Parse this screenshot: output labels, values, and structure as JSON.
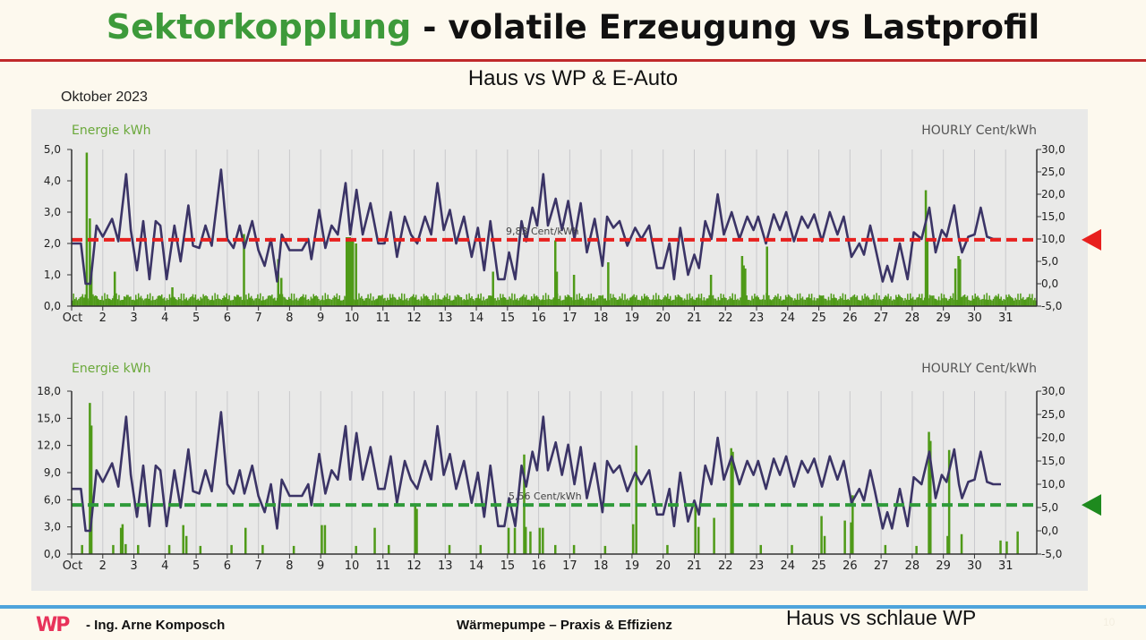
{
  "header": {
    "title_highlight": "Sektorkopplung",
    "title_rest": " - volatile Erzeugung vs Lastprofil",
    "subtitle": "Haus vs WP & E-Auto",
    "month": "Oktober 2023"
  },
  "footer": {
    "logo_text_a": "W",
    "logo_text_b": "P",
    "author": "- Ing. Arne Komposch",
    "center": "Wärmepumpe – Praxis & Effizienz",
    "right": "Haus vs schlaue WP",
    "page": "10"
  },
  "colors": {
    "title_green": "#3d9a3a",
    "price_line": "#3b3466",
    "energy_bars": "#4f9a18",
    "avg_red": "#e8201e",
    "avg_green": "#2f9a3a"
  },
  "chart_data": [
    {
      "type": "bar+line",
      "left_label": "Energie kWh",
      "right_label": "HOURLY Cent/kWh",
      "ylim": [
        0,
        5
      ],
      "yticks": [
        "0,0",
        "1,0",
        "2,0",
        "3,0",
        "4,0",
        "5,0"
      ],
      "y2lim": [
        -5,
        30
      ],
      "y2ticks": [
        "-5,0",
        "0,0",
        "5,0",
        "10,0",
        "15,0",
        "20,0",
        "25,0",
        "30,0"
      ],
      "xticks": [
        "Oct",
        "2",
        "3",
        "4",
        "5",
        "6",
        "7",
        "8",
        "9",
        "10",
        "11",
        "12",
        "13",
        "14",
        "15",
        "16",
        "17",
        "18",
        "19",
        "20",
        "21",
        "22",
        "23",
        "24",
        "25",
        "26",
        "27",
        "28",
        "29",
        "30",
        "31"
      ],
      "avg_price": 9.83,
      "avg_label": "9,83 Cent/kWh",
      "marker_color": "#e8201e",
      "baseline_kwh": 0.3,
      "energy_spikes": [
        [
          1.45,
          4.9
        ],
        [
          1.55,
          2.8
        ],
        [
          1.6,
          1.2
        ],
        [
          2.35,
          1.1
        ],
        [
          4.2,
          0.6
        ],
        [
          6.5,
          2.3
        ],
        [
          7.6,
          1.5
        ],
        [
          7.7,
          0.9
        ],
        [
          9.8,
          2.2
        ],
        [
          9.85,
          2.2
        ],
        [
          9.9,
          2.2
        ],
        [
          9.95,
          2.1
        ],
        [
          10.0,
          2.1
        ],
        [
          10.1,
          2.0
        ],
        [
          14.5,
          1.1
        ],
        [
          16.5,
          2.1
        ],
        [
          16.55,
          1.1
        ],
        [
          17.1,
          1.0
        ],
        [
          18.2,
          1.4
        ],
        [
          21.5,
          1.0
        ],
        [
          22.5,
          1.6
        ],
        [
          22.55,
          1.3
        ],
        [
          22.6,
          1.2
        ],
        [
          23.3,
          1.9
        ],
        [
          28.4,
          3.7
        ],
        [
          28.45,
          2.1
        ],
        [
          29.35,
          1.2
        ],
        [
          29.45,
          1.6
        ],
        [
          29.5,
          1.5
        ]
      ]
    },
    {
      "type": "bar+line",
      "left_label": "Energie kWh",
      "right_label": "HOURLY Cent/kWh",
      "ylim": [
        0,
        18
      ],
      "yticks": [
        "0,0",
        "3,0",
        "6,0",
        "9,0",
        "12,0",
        "15,0",
        "18,0"
      ],
      "y2lim": [
        -5,
        30
      ],
      "y2ticks": [
        "-5,0",
        "0,0",
        "5,0",
        "10,0",
        "15,0",
        "20,0",
        "25,0",
        "30,0"
      ],
      "xticks": [
        "Oct",
        "2",
        "3",
        "4",
        "5",
        "6",
        "7",
        "8",
        "9",
        "10",
        "11",
        "12",
        "13",
        "14",
        "15",
        "16",
        "17",
        "18",
        "19",
        "20",
        "21",
        "22",
        "23",
        "24",
        "25",
        "26",
        "27",
        "28",
        "29",
        "30",
        "31"
      ],
      "avg_price": 5.56,
      "avg_label": "5,56 Cent/kWh",
      "marker_color": "#1e8a1e",
      "baseline_kwh": 0,
      "energy_spikes": [
        [
          1.3,
          1.0
        ],
        [
          1.55,
          16.7
        ],
        [
          1.6,
          14.2
        ],
        [
          2.3,
          1.0
        ],
        [
          2.55,
          2.9
        ],
        [
          2.6,
          3.3
        ],
        [
          2.7,
          1.1
        ],
        [
          3.1,
          1.0
        ],
        [
          4.1,
          1.0
        ],
        [
          4.55,
          3.2
        ],
        [
          4.65,
          2.0
        ],
        [
          5.1,
          0.9
        ],
        [
          6.1,
          1.0
        ],
        [
          6.55,
          2.9
        ],
        [
          7.1,
          1.0
        ],
        [
          8.1,
          0.9
        ],
        [
          9.0,
          3.2
        ],
        [
          9.1,
          3.2
        ],
        [
          10.1,
          0.9
        ],
        [
          10.7,
          2.9
        ],
        [
          11.15,
          1.0
        ],
        [
          12.0,
          5.6
        ],
        [
          12.05,
          5.0
        ],
        [
          13.1,
          1.0
        ],
        [
          14.1,
          1.0
        ],
        [
          15.0,
          2.9
        ],
        [
          15.2,
          2.9
        ],
        [
          15.5,
          11.0
        ],
        [
          15.55,
          3.0
        ],
        [
          15.7,
          2.5
        ],
        [
          16.0,
          2.9
        ],
        [
          16.1,
          2.9
        ],
        [
          16.5,
          1.0
        ],
        [
          17.1,
          1.0
        ],
        [
          18.1,
          0.9
        ],
        [
          19.0,
          3.3
        ],
        [
          19.1,
          12.0
        ],
        [
          20.1,
          1.0
        ],
        [
          21.0,
          5.3
        ],
        [
          21.1,
          3.0
        ],
        [
          21.6,
          4.0
        ],
        [
          22.15,
          11.7
        ],
        [
          22.2,
          11.3
        ],
        [
          23.1,
          1.0
        ],
        [
          24.1,
          1.0
        ],
        [
          25.05,
          4.2
        ],
        [
          25.15,
          2.0
        ],
        [
          25.8,
          3.7
        ],
        [
          26.0,
          3.5
        ],
        [
          26.05,
          6.5
        ],
        [
          27.1,
          1.0
        ],
        [
          28.1,
          0.9
        ],
        [
          28.5,
          13.5
        ],
        [
          28.55,
          12.5
        ],
        [
          29.1,
          2.0
        ],
        [
          29.15,
          11.5
        ],
        [
          29.55,
          2.2
        ],
        [
          30.8,
          1.5
        ],
        [
          31.0,
          1.4
        ],
        [
          31.35,
          2.5
        ]
      ]
    }
  ],
  "price_series": [
    [
      1.0,
      9
    ],
    [
      1.3,
      9
    ],
    [
      1.45,
      0
    ],
    [
      1.6,
      0
    ],
    [
      1.8,
      13
    ],
    [
      2.0,
      10.5
    ],
    [
      2.3,
      14.5
    ],
    [
      2.5,
      9.5
    ],
    [
      2.75,
      24.5
    ],
    [
      2.9,
      12
    ],
    [
      3.1,
      3
    ],
    [
      3.3,
      14
    ],
    [
      3.5,
      1
    ],
    [
      3.7,
      14
    ],
    [
      3.85,
      13
    ],
    [
      4.05,
      1
    ],
    [
      4.3,
      13
    ],
    [
      4.5,
      5
    ],
    [
      4.75,
      17.5
    ],
    [
      4.9,
      8.5
    ],
    [
      5.1,
      8
    ],
    [
      5.3,
      13
    ],
    [
      5.5,
      8.5
    ],
    [
      5.8,
      25.5
    ],
    [
      6.0,
      10
    ],
    [
      6.2,
      8
    ],
    [
      6.4,
      13
    ],
    [
      6.55,
      8
    ],
    [
      6.8,
      14
    ],
    [
      7.0,
      7.5
    ],
    [
      7.2,
      4
    ],
    [
      7.4,
      10
    ],
    [
      7.6,
      0.5
    ],
    [
      7.75,
      11
    ],
    [
      8.0,
      7.5
    ],
    [
      8.4,
      7.5
    ],
    [
      8.6,
      10
    ],
    [
      8.7,
      5.5
    ],
    [
      8.95,
      16.5
    ],
    [
      9.15,
      8
    ],
    [
      9.35,
      13
    ],
    [
      9.55,
      11
    ],
    [
      9.8,
      22.5
    ],
    [
      9.95,
      11
    ],
    [
      10.15,
      21
    ],
    [
      10.35,
      11
    ],
    [
      10.6,
      18
    ],
    [
      10.85,
      9
    ],
    [
      11.05,
      9
    ],
    [
      11.25,
      16
    ],
    [
      11.45,
      6
    ],
    [
      11.7,
      15
    ],
    [
      11.9,
      11
    ],
    [
      12.1,
      9
    ],
    [
      12.35,
      15
    ],
    [
      12.55,
      11
    ],
    [
      12.75,
      22.5
    ],
    [
      12.95,
      12
    ],
    [
      13.15,
      16.5
    ],
    [
      13.35,
      9
    ],
    [
      13.6,
      15
    ],
    [
      13.85,
      6
    ],
    [
      14.05,
      12.5
    ],
    [
      14.25,
      3
    ],
    [
      14.45,
      14
    ],
    [
      14.7,
      1
    ],
    [
      14.9,
      1
    ],
    [
      15.05,
      7
    ],
    [
      15.25,
      1
    ],
    [
      15.45,
      14
    ],
    [
      15.6,
      9.5
    ],
    [
      15.8,
      17
    ],
    [
      15.95,
      13
    ],
    [
      16.15,
      24.5
    ],
    [
      16.3,
      13
    ],
    [
      16.55,
      19
    ],
    [
      16.75,
      12
    ],
    [
      16.95,
      18.5
    ],
    [
      17.15,
      10
    ],
    [
      17.35,
      18
    ],
    [
      17.55,
      7
    ],
    [
      17.8,
      14.5
    ],
    [
      18.05,
      4
    ],
    [
      18.2,
      15
    ],
    [
      18.4,
      12.5
    ],
    [
      18.6,
      14
    ],
    [
      18.85,
      8.5
    ],
    [
      19.1,
      12.5
    ],
    [
      19.3,
      10
    ],
    [
      19.55,
      13
    ],
    [
      19.8,
      3.5
    ],
    [
      20.0,
      3.5
    ],
    [
      20.2,
      9
    ],
    [
      20.35,
      1
    ],
    [
      20.55,
      12.5
    ],
    [
      20.8,
      2
    ],
    [
      21.0,
      6.5
    ],
    [
      21.15,
      3.5
    ],
    [
      21.35,
      14
    ],
    [
      21.55,
      10
    ],
    [
      21.75,
      20
    ],
    [
      21.95,
      11
    ],
    [
      22.2,
      16
    ],
    [
      22.45,
      10
    ],
    [
      22.7,
      15
    ],
    [
      22.9,
      12
    ],
    [
      23.05,
      15
    ],
    [
      23.3,
      9
    ],
    [
      23.55,
      15.5
    ],
    [
      23.75,
      12
    ],
    [
      23.95,
      16
    ],
    [
      24.2,
      9.5
    ],
    [
      24.45,
      15
    ],
    [
      24.65,
      12.5
    ],
    [
      24.85,
      15.5
    ],
    [
      25.1,
      9.5
    ],
    [
      25.35,
      16
    ],
    [
      25.6,
      11
    ],
    [
      25.8,
      15
    ],
    [
      26.05,
      6
    ],
    [
      26.3,
      9
    ],
    [
      26.45,
      6.5
    ],
    [
      26.65,
      13
    ],
    [
      26.8,
      8.5
    ],
    [
      27.05,
      0.5
    ],
    [
      27.2,
      4
    ],
    [
      27.35,
      0.5
    ],
    [
      27.6,
      9
    ],
    [
      27.85,
      1
    ],
    [
      28.05,
      11.5
    ],
    [
      28.3,
      10
    ],
    [
      28.55,
      17
    ],
    [
      28.75,
      7
    ],
    [
      28.95,
      12
    ],
    [
      29.1,
      10.5
    ],
    [
      29.35,
      17.5
    ],
    [
      29.5,
      10
    ],
    [
      29.6,
      7
    ],
    [
      29.8,
      10.5
    ],
    [
      30.0,
      11
    ],
    [
      30.2,
      17
    ],
    [
      30.4,
      10.5
    ],
    [
      30.6,
      10
    ],
    [
      30.85,
      10
    ]
  ]
}
